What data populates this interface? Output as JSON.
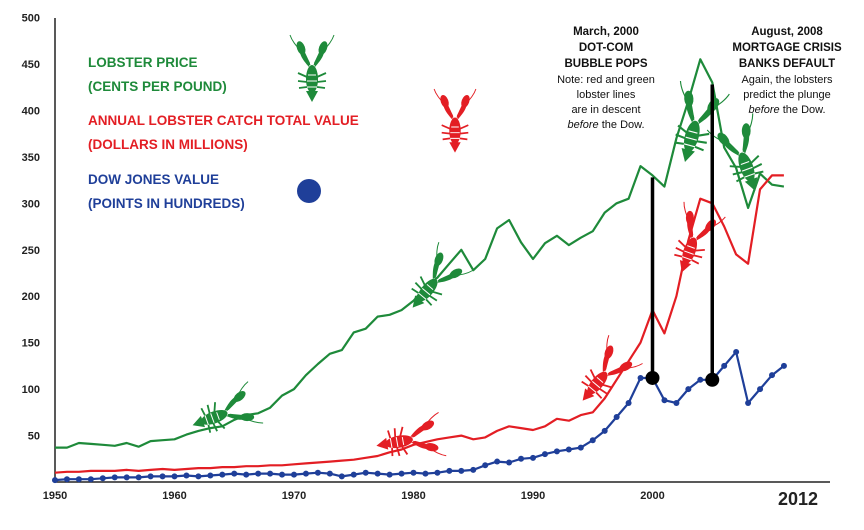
{
  "chart_data": {
    "type": "line",
    "ylim": [
      0,
      500
    ],
    "xlim": [
      1950,
      2012
    ],
    "y_ticks": [
      "500",
      "450",
      "400",
      "350",
      "300",
      "250",
      "200",
      "150",
      "100",
      "50"
    ],
    "x_ticks": [
      "1950",
      "1960",
      "1970",
      "1980",
      "1990",
      "2000"
    ],
    "x_end_label": "2012",
    "grid": false,
    "legend_placement": "top-left",
    "series": [
      {
        "key": "lobster_price",
        "name": "LOBSTER PRICE (CENTS PER POUND)",
        "legend_line1": "LOBSTER PRICE",
        "legend_line2": "(CENTS PER POUND)",
        "color": "#1e8a3a",
        "x": [
          1950,
          1951,
          1952,
          1953,
          1954,
          1955,
          1956,
          1957,
          1958,
          1959,
          1960,
          1961,
          1962,
          1963,
          1964,
          1965,
          1966,
          1967,
          1968,
          1969,
          1970,
          1971,
          1972,
          1973,
          1974,
          1975,
          1976,
          1977,
          1978,
          1979,
          1980,
          1981,
          1982,
          1983,
          1984,
          1985,
          1986,
          1987,
          1988,
          1989,
          1990,
          1991,
          1992,
          1993,
          1994,
          1995,
          1996,
          1997,
          1998,
          1999,
          2000,
          2001,
          2002,
          2003,
          2004,
          2005,
          2006,
          2007,
          2008,
          2009,
          2010,
          2011
        ],
        "values": [
          37,
          37,
          42,
          41,
          40,
          39,
          42,
          38,
          44,
          45,
          46,
          51,
          55,
          58,
          60,
          67,
          72,
          74,
          80,
          93,
          100,
          115,
          127,
          138,
          142,
          161,
          165,
          178,
          180,
          185,
          195,
          210,
          220,
          235,
          250,
          228,
          240,
          273,
          282,
          258,
          240,
          257,
          265,
          255,
          263,
          270,
          290,
          300,
          305,
          340,
          330,
          318,
          370,
          410,
          455,
          430,
          360,
          338,
          295,
          332,
          320,
          318
        ]
      },
      {
        "key": "catch_value",
        "name": "ANNUAL LOBSTER CATCH TOTAL VALUE (DOLLARS IN MILLIONS)",
        "legend_line1": "ANNUAL LOBSTER CATCH TOTAL VALUE",
        "legend_line2": "(DOLLARS IN MILLIONS)",
        "color": "#e31e24",
        "x": [
          1950,
          1951,
          1952,
          1953,
          1954,
          1955,
          1956,
          1957,
          1958,
          1959,
          1960,
          1961,
          1962,
          1963,
          1964,
          1965,
          1966,
          1967,
          1968,
          1969,
          1970,
          1971,
          1972,
          1973,
          1974,
          1975,
          1976,
          1977,
          1978,
          1979,
          1980,
          1981,
          1982,
          1983,
          1984,
          1985,
          1986,
          1987,
          1988,
          1989,
          1990,
          1991,
          1992,
          1993,
          1994,
          1995,
          1996,
          1997,
          1998,
          1999,
          2000,
          2001,
          2002,
          2003,
          2004,
          2005,
          2006,
          2007,
          2008,
          2009,
          2010,
          2011
        ],
        "values": [
          10,
          11,
          11,
          12,
          12,
          12,
          13,
          12,
          13,
          14,
          13,
          14,
          15,
          15,
          16,
          16,
          17,
          17,
          18,
          18,
          19,
          20,
          21,
          22,
          23,
          24,
          26,
          28,
          32,
          35,
          40,
          43,
          46,
          48,
          50,
          46,
          48,
          55,
          60,
          58,
          56,
          60,
          68,
          66,
          72,
          75,
          90,
          110,
          130,
          150,
          185,
          160,
          200,
          260,
          305,
          300,
          275,
          245,
          235,
          315,
          330,
          330
        ]
      },
      {
        "key": "dow",
        "name": "DOW JONES VALUE (POINTS IN HUNDREDS)",
        "legend_line1": "DOW JONES VALUE",
        "legend_line2": "(POINTS IN HUNDREDS)",
        "color": "#1f3f99",
        "x": [
          1950,
          1951,
          1952,
          1953,
          1954,
          1955,
          1956,
          1957,
          1958,
          1959,
          1960,
          1961,
          1962,
          1963,
          1964,
          1965,
          1966,
          1967,
          1968,
          1969,
          1970,
          1971,
          1972,
          1973,
          1974,
          1975,
          1976,
          1977,
          1978,
          1979,
          1980,
          1981,
          1982,
          1983,
          1984,
          1985,
          1986,
          1987,
          1988,
          1989,
          1990,
          1991,
          1992,
          1993,
          1994,
          1995,
          1996,
          1997,
          1998,
          1999,
          2000,
          2001,
          2002,
          2003,
          2004,
          2005,
          2006,
          2007,
          2008,
          2009,
          2010,
          2011
        ],
        "values": [
          2,
          3,
          3,
          3,
          4,
          5,
          5,
          5,
          6,
          6,
          6,
          7,
          6,
          7,
          8,
          9,
          8,
          9,
          9,
          8,
          8,
          9,
          10,
          9,
          6,
          8,
          10,
          9,
          8,
          9,
          10,
          9,
          10,
          12,
          12,
          13,
          18,
          22,
          21,
          25,
          26,
          30,
          33,
          35,
          37,
          45,
          55,
          70,
          85,
          112,
          112,
          88,
          85,
          100,
          110,
          110,
          125,
          140,
          85,
          100,
          115,
          125
        ]
      }
    ],
    "annotations": [
      {
        "key": "dotcom",
        "x": 2000,
        "lines": [
          "March, 2000",
          "DOT-COM",
          "BUBBLE POPS"
        ],
        "note_lines": [
          "Note: red and green",
          "lobster lines",
          "are in descent",
          "before the Dow."
        ]
      },
      {
        "key": "mortgage",
        "x": 2005,
        "lines": [
          "August, 2008",
          "MORTGAGE CRISIS",
          "BANKS DEFAULT"
        ],
        "note_lines": [
          "Again, the lobsters",
          "predict the plunge",
          "before the Dow."
        ]
      }
    ]
  }
}
